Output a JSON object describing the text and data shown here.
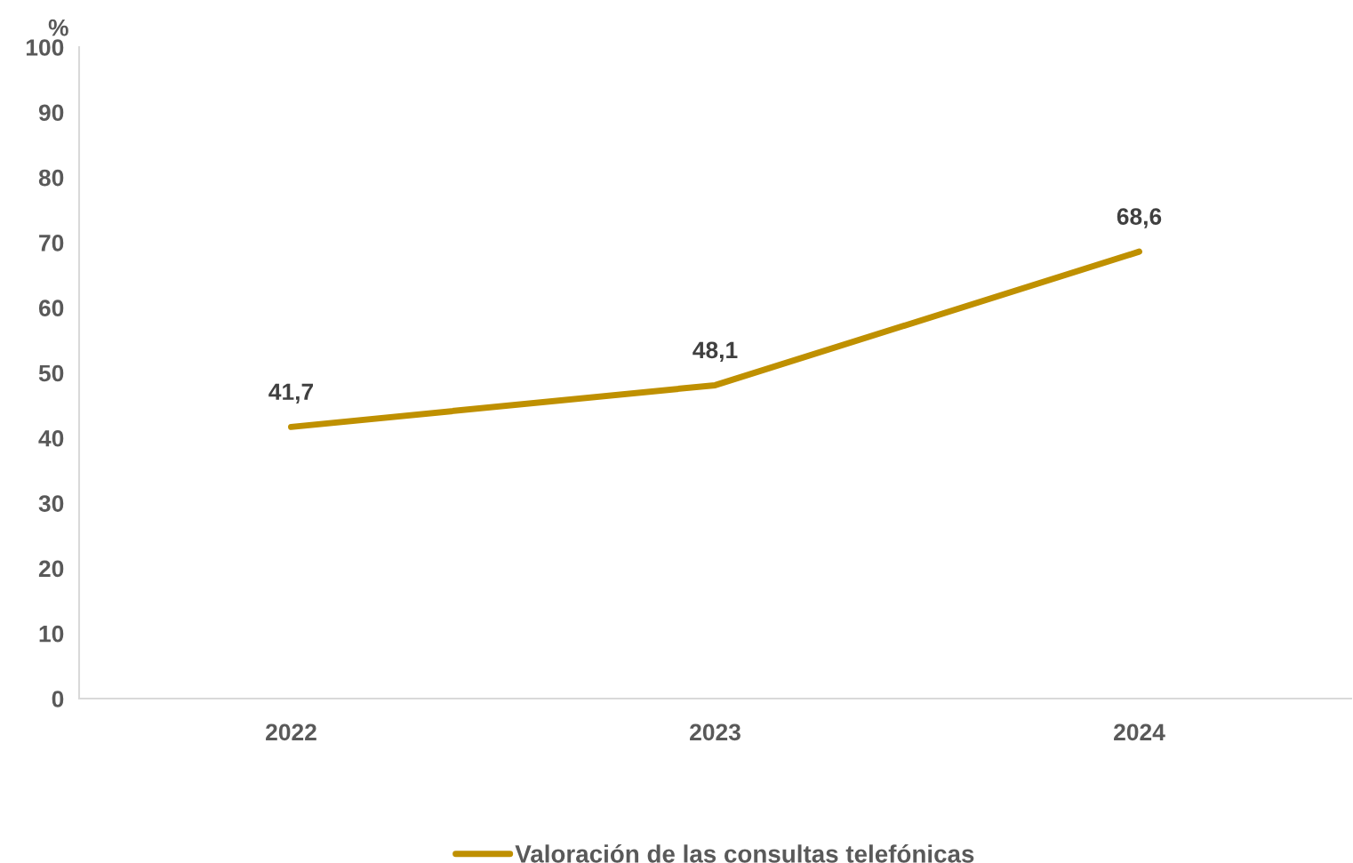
{
  "chart_data": {
    "type": "line",
    "ylabel": "%",
    "categories": [
      "2022",
      "2023",
      "2024"
    ],
    "series": [
      {
        "name": "Valoración de las consultas telefónicas",
        "color": "#bf9000",
        "values": [
          41.7,
          48.1,
          68.6
        ],
        "value_labels": [
          "41,7",
          "48,1",
          "68,6"
        ]
      }
    ],
    "ylim": [
      0,
      100
    ],
    "yticks": [
      0,
      10,
      20,
      30,
      40,
      50,
      60,
      70,
      80,
      90,
      100
    ],
    "grid": false,
    "legend": "bottom",
    "marker": "none",
    "line_style": "solid"
  }
}
